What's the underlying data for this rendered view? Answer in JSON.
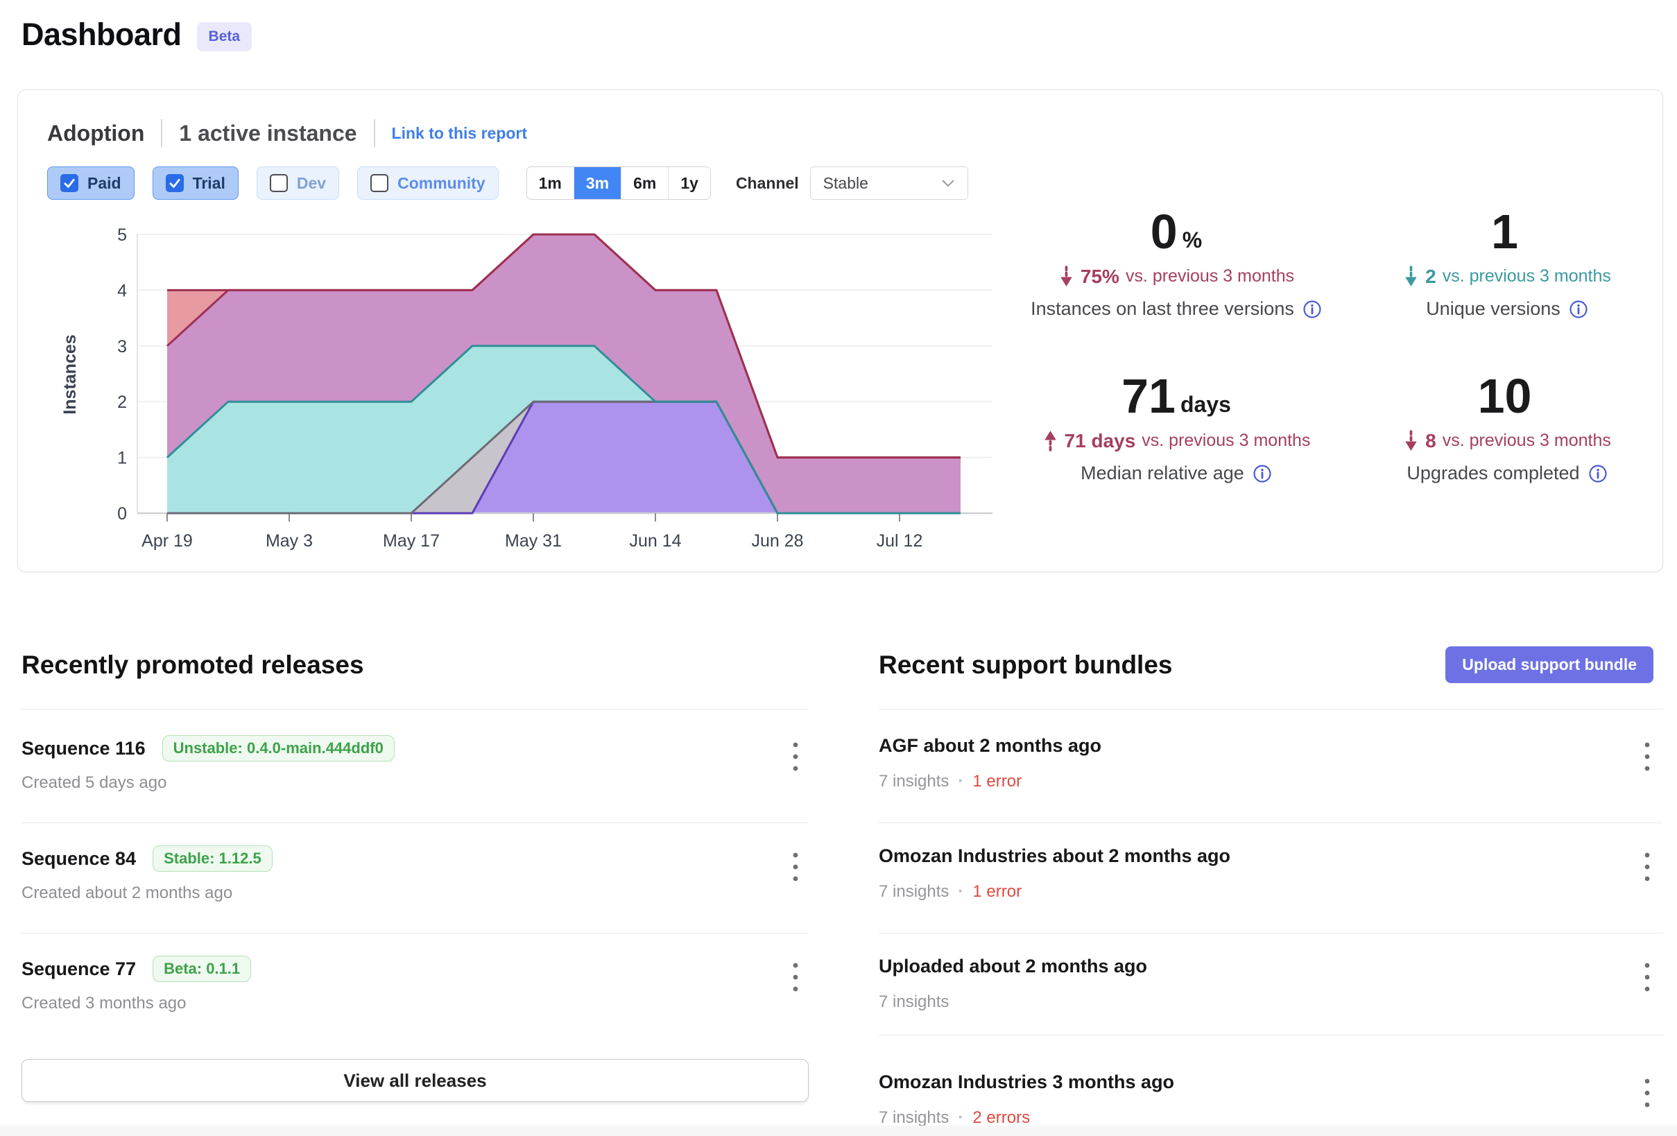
{
  "header": {
    "title": "Dashboard",
    "badge": "Beta"
  },
  "adoption": {
    "title": "Adoption",
    "subtitle": "1 active instance",
    "link": "Link to this report",
    "filters": [
      {
        "label": "Paid",
        "checked": true
      },
      {
        "label": "Trial",
        "checked": true
      },
      {
        "label": "Dev",
        "checked": false,
        "text_color": "#7fa3d4"
      },
      {
        "label": "Community",
        "checked": false,
        "text_color": "#5d8ce8"
      }
    ],
    "ranges": [
      {
        "label": "1m",
        "active": false
      },
      {
        "label": "3m",
        "active": true
      },
      {
        "label": "6m",
        "active": false
      },
      {
        "label": "1y",
        "active": false
      }
    ],
    "channel_label": "Channel",
    "channel_value": "Stable",
    "stats": [
      {
        "value": "0",
        "unit": "%",
        "delta": "75%",
        "delta_suffix": "vs. previous 3 months",
        "delta_dir": "down",
        "delta_tone": "red",
        "caption": "Instances on last three versions"
      },
      {
        "value": "1",
        "unit": "",
        "delta": "2",
        "delta_suffix": "vs. previous 3 months",
        "delta_dir": "down",
        "delta_tone": "teal",
        "caption": "Unique versions"
      },
      {
        "value": "71",
        "unit": "days",
        "delta": "71 days",
        "delta_suffix": "vs. previous 3 months",
        "delta_dir": "up",
        "delta_tone": "red",
        "caption": "Median relative age"
      },
      {
        "value": "10",
        "unit": "",
        "delta": "8",
        "delta_suffix": "vs. previous 3 months",
        "delta_dir": "down",
        "delta_tone": "red",
        "caption": "Upgrades completed"
      }
    ]
  },
  "chart_data": {
    "type": "area",
    "stacked": true,
    "ylabel": "Instances",
    "xlabel": "",
    "ylim": [
      0,
      5
    ],
    "yticks": [
      0,
      1,
      2,
      3,
      4,
      5
    ],
    "x": [
      "Apr 19",
      "Apr 26",
      "May 3",
      "May 10",
      "May 17",
      "May 24",
      "May 31",
      "Jun 7",
      "Jun 14",
      "Jun 21",
      "Jun 28",
      "Jul 5",
      "Jul 12",
      "Jul 19"
    ],
    "x_tick_indices": [
      0,
      2,
      4,
      6,
      8,
      10,
      12
    ],
    "x_tick_labels": [
      "Apr 19",
      "May 3",
      "May 17",
      "May 31",
      "Jun 14",
      "Jun 28",
      "Jul 12"
    ],
    "grid": true,
    "legend": "none",
    "series": [
      {
        "name": "series-1-purple",
        "fill": "#ad93ee",
        "stroke": "#5b3db5",
        "values": [
          0,
          0,
          0,
          0,
          0,
          0,
          2,
          2,
          2,
          2,
          0,
          0,
          0,
          0
        ]
      },
      {
        "name": "series-2-gray",
        "fill": "#c7c4cb",
        "stroke": "#6e6a75",
        "values": [
          0,
          0,
          0,
          0,
          0,
          1,
          0,
          0,
          0,
          0,
          0,
          0,
          0,
          0
        ]
      },
      {
        "name": "series-3-teal",
        "fill": "#aae4e2",
        "stroke": "#2f8e96",
        "values": [
          1,
          2,
          2,
          2,
          2,
          2,
          1,
          1,
          0,
          0,
          0,
          0,
          0,
          0
        ]
      },
      {
        "name": "series-4-mauve",
        "fill": "#cb92c8",
        "stroke": "#9c3258",
        "values": [
          2,
          2,
          2,
          2,
          2,
          1,
          2,
          2,
          2,
          2,
          1,
          1,
          1,
          1
        ]
      },
      {
        "name": "series-5-salmon",
        "fill": "#e79aa2",
        "stroke": "#9e3051",
        "values": [
          1,
          0,
          0,
          0,
          0,
          0,
          0,
          0,
          0,
          0,
          0,
          0,
          0,
          0
        ]
      }
    ]
  },
  "releases": {
    "heading": "Recently promoted releases",
    "view_all": "View all releases",
    "items": [
      {
        "title": "Sequence 116",
        "badge": "Unstable: 0.4.0-main.444ddf0",
        "created": "Created 5 days ago"
      },
      {
        "title": "Sequence 84",
        "badge": "Stable: 1.12.5",
        "created": "Created about 2 months ago"
      },
      {
        "title": "Sequence 77",
        "badge": "Beta: 0.1.1",
        "created": "Created 3 months ago"
      }
    ]
  },
  "bundles": {
    "heading": "Recent support bundles",
    "upload_label": "Upload support bundle",
    "items": [
      {
        "title": "AGF about 2 months ago",
        "insights": "7 insights",
        "errors": "1 error"
      },
      {
        "title": "Omozan Industries about 2 months ago",
        "insights": "7 insights",
        "errors": "1 error"
      },
      {
        "title": "Uploaded about 2 months ago",
        "insights": "7 insights",
        "errors": null
      },
      {
        "title": "Omozan Industries 3 months ago",
        "insights": "7 insights",
        "errors": "2 errors"
      }
    ]
  },
  "colors": {
    "accent_blue": "#4285f4",
    "link_blue": "#3e7ee9",
    "stat_red": "#a63f5e",
    "stat_teal": "#3b9aa1",
    "info_icon": "#4a5cd0",
    "error_red": "#dd4a41",
    "badge_green": "#3da24a",
    "upload_indigo": "#6d71e3"
  }
}
